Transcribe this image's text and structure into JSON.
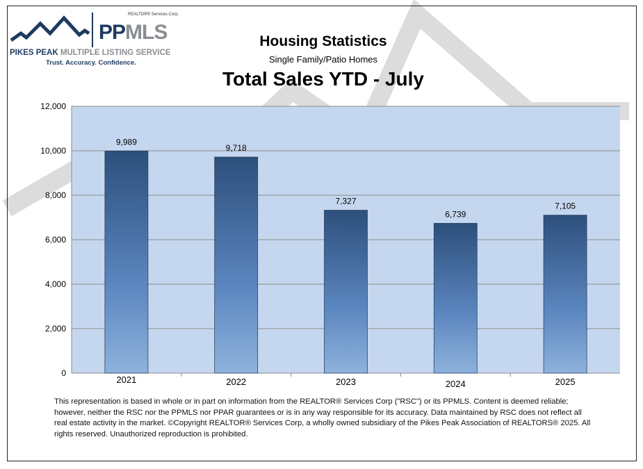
{
  "logo": {
    "corp": "REALTOR® Services Corp.",
    "brand_pp": "PP",
    "brand_mls": "MLS",
    "name_dark": "PIKES PEAK",
    "name_light": "MULTIPLE LISTING SERVICE",
    "tagline": "Trust. Accuracy. Confidence."
  },
  "header": {
    "title": "Housing Statistics",
    "subtitle": "Single Family/Patio Homes",
    "chart_title": "Total Sales YTD - July"
  },
  "chart_data": {
    "type": "bar",
    "title": "Total Sales YTD - July",
    "categories": [
      "2021",
      "2022",
      "2023",
      "2024",
      "2025"
    ],
    "values": [
      9989,
      9718,
      7327,
      6739,
      7105
    ],
    "data_labels": [
      "9,989",
      "9,718",
      "7,327",
      "6,739",
      "7,105"
    ],
    "ylim": [
      0,
      12000
    ],
    "yticks": [
      "0",
      "2,000",
      "4,000",
      "6,000",
      "8,000",
      "10,000",
      "12,000"
    ],
    "grid": true,
    "legend": "none",
    "colors": {
      "bar_top": "#2d4f7c",
      "bar_bottom": "#8eb2dc",
      "plot_bg": "#c5d7ef",
      "grid": "#8a8a8a"
    }
  },
  "footer": {
    "disclaimer": "This representation is based in whole or in part on information from the REALTOR® Services Corp (\"RSC\") or its PPMLS. Content is deemed reliable; however, neither the RSC nor the PPMLS nor PPAR guarantees or is in any way responsible for its accuracy. Data maintained by RSC does not reflect all real estate activity in the market. ©Copyright REALTOR® Services Corp, a wholly owned subsidiary of the Pikes Peak Association of REALTORS® 2025. All rights reserved. Unauthorized reproduction is prohibited."
  }
}
